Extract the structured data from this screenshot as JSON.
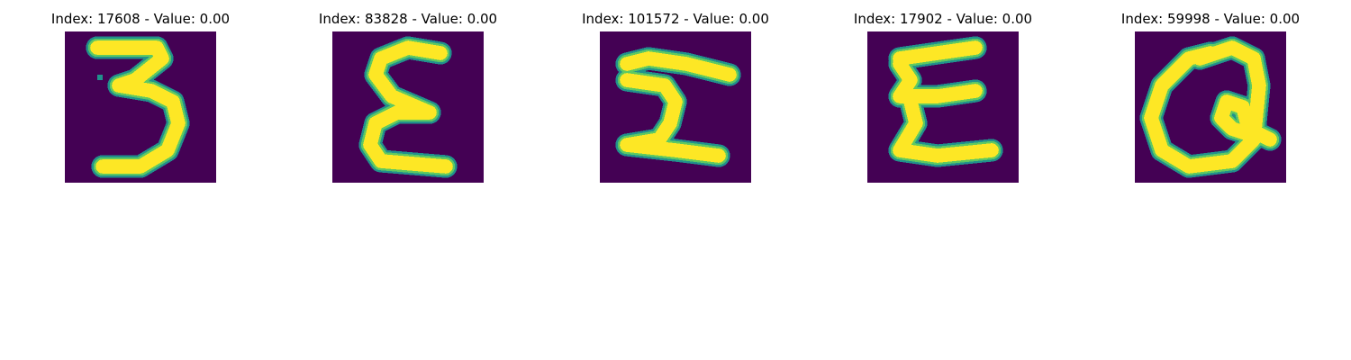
{
  "panels": [
    {
      "title": "Index: 17608 - Value: 0.00",
      "image_icon": "digit-3-glyph-icon"
    },
    {
      "title": "Index: 83828 - Value: 0.00",
      "image_icon": "sigma-like-glyph-icon"
    },
    {
      "title": "Index: 101572 - Value: 0.00",
      "image_icon": "sigma-like-glyph-icon"
    },
    {
      "title": "Index: 17902 - Value: 0.00",
      "image_icon": "sigma-like-glyph-icon"
    },
    {
      "title": "Index: 59998 - Value: 0.00",
      "image_icon": "letter-a-glyph-icon"
    }
  ],
  "colors": {
    "background": "#440154",
    "stroke_core": "#fde725",
    "stroke_edge": "#21918c",
    "stroke_mid": "#5ec962"
  }
}
